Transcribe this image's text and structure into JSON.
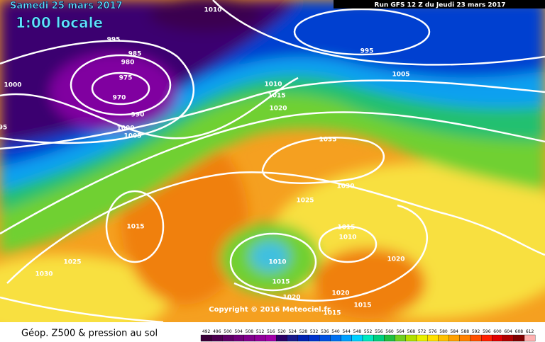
{
  "header": {
    "date": "Samedi 25 mars 2017",
    "time": "1:00 locale",
    "run": "Run GFS 12 Z du Jeudi 23 mars 2017"
  },
  "copyright": "Copyright © 2016 Meteociel.fr",
  "isobars": [
    "1010",
    "995",
    "985",
    "980",
    "975",
    "970",
    "1000",
    "990",
    "1000",
    "1005",
    "95",
    "995",
    "1005",
    "1010",
    "1015",
    "1020",
    "1035",
    "1030",
    "1025",
    "1015",
    "1015",
    "1010",
    "1025",
    "1030",
    "1010",
    "1015",
    "1020",
    "1020",
    "1020",
    "1015",
    "1015"
  ],
  "legend": {
    "title": "Géop. Z500 & pression au sol",
    "values": [
      492,
      496,
      500,
      504,
      508,
      512,
      516,
      520,
      524,
      528,
      532,
      536,
      540,
      544,
      548,
      552,
      556,
      560,
      564,
      568,
      572,
      576,
      580,
      584,
      588,
      592,
      596,
      600,
      604,
      608,
      612
    ],
    "colors": [
      "#3a0038",
      "#4d0050",
      "#5e0066",
      "#70007a",
      "#80008c",
      "#900099",
      "#a000a8",
      "#2a0066",
      "#1a1a8c",
      "#0022b0",
      "#0033cc",
      "#0050e0",
      "#0070f0",
      "#00a0ff",
      "#00d0ff",
      "#00e8c0",
      "#00d080",
      "#20c040",
      "#70d020",
      "#b0e000",
      "#e8f000",
      "#ffe000",
      "#ffc000",
      "#ffa000",
      "#ff8000",
      "#ff5000",
      "#ff2000",
      "#e00000",
      "#b00000",
      "#800000",
      "#ffb0b0"
    ]
  }
}
